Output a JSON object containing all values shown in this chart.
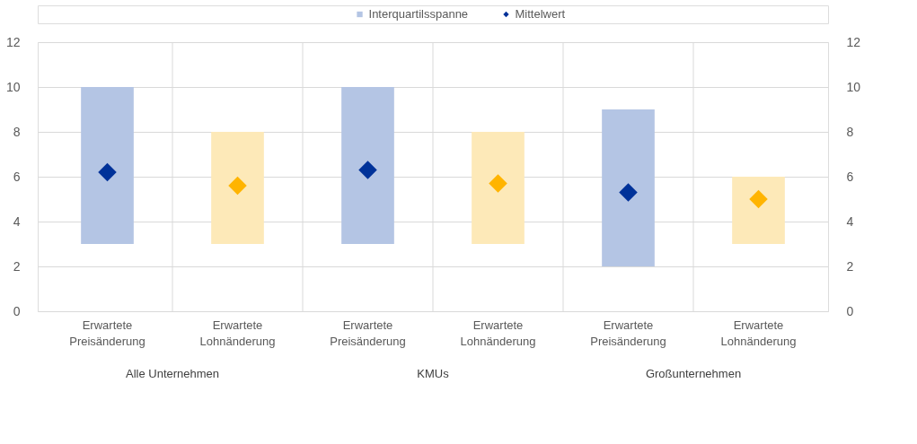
{
  "chart_data": {
    "type": "bar",
    "categories": [
      "Erwartete Preisänderung",
      "Erwartete Lohnänderung",
      "Erwartete Preisänderung",
      "Erwartete Lohnänderung",
      "Erwartete Preisänderung",
      "Erwartete Lohnänderung"
    ],
    "series": [
      {
        "name": "Interquartilsspanne",
        "color": "#b4c5e4",
        "colors": [
          "#b4c5e4",
          "#fde9b8",
          "#b4c5e4",
          "#fde9b8",
          "#b4c5e4",
          "#fde9b8"
        ],
        "base": [
          3,
          3,
          3,
          3,
          2,
          3
        ],
        "values": [
          7,
          5,
          7,
          5,
          7,
          3
        ]
      },
      {
        "name": "Mittelwert",
        "type": "scatter",
        "marker": "diamond",
        "color": "#003299",
        "colors": [
          "#003299",
          "#ffb400",
          "#003299",
          "#ffb400",
          "#003299",
          "#ffb400"
        ],
        "values": [
          6.2,
          5.6,
          6.3,
          5.7,
          5.3,
          5.0
        ]
      }
    ],
    "annotations": [
      "Alle Unternehmen",
      "KMUs",
      "Großunternehmen"
    ],
    "ylim": [
      0,
      12
    ],
    "yticks": [
      0,
      2,
      4,
      6,
      8,
      10,
      12
    ],
    "y2lim": [
      0,
      12
    ],
    "y2ticks": [
      0,
      2,
      4,
      6,
      8,
      10,
      12
    ],
    "grid": true,
    "legend": "top"
  }
}
